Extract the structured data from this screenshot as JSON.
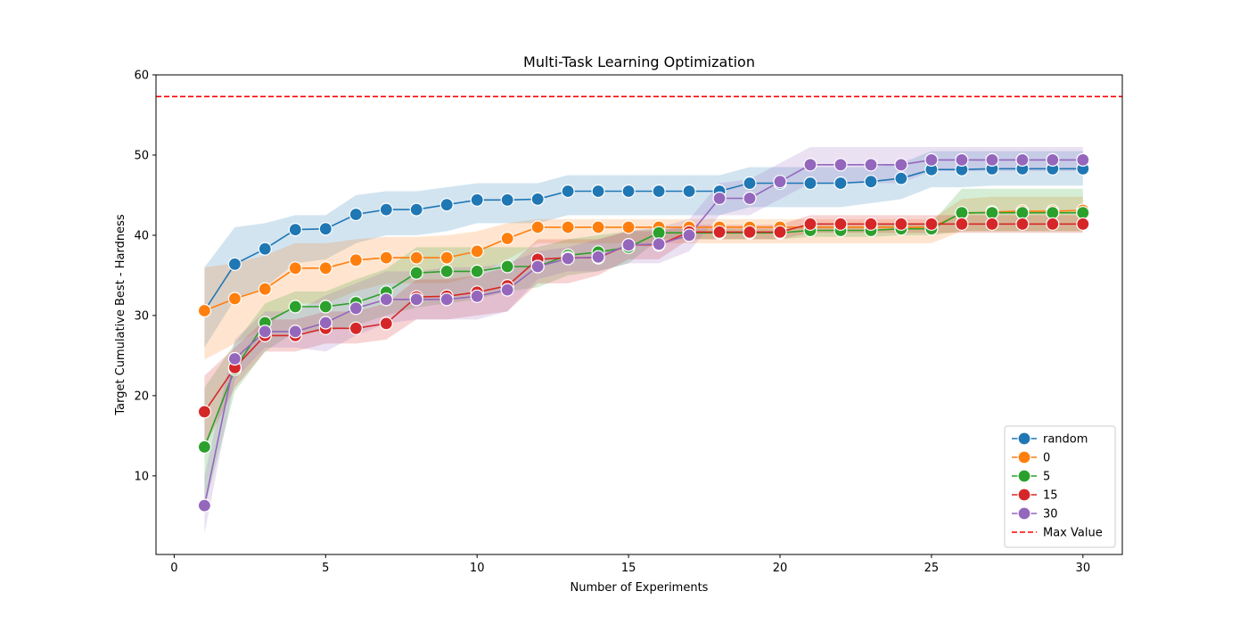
{
  "chart_data": {
    "type": "line",
    "title": "Multi-Task Learning Optimization",
    "xlabel": "Number of Experiments",
    "ylabel": "Target Cumulative Best - Hardness",
    "xlim": [
      -0.6,
      31.3
    ],
    "ylim": [
      0.2,
      60
    ],
    "xticks": [
      0,
      5,
      10,
      15,
      20,
      25,
      30
    ],
    "yticks": [
      10,
      20,
      30,
      40,
      50,
      60
    ],
    "grid": false,
    "legend_position": "lower-right",
    "x": [
      1,
      2,
      3,
      4,
      5,
      6,
      7,
      8,
      9,
      10,
      11,
      12,
      13,
      14,
      15,
      16,
      17,
      18,
      19,
      20,
      21,
      22,
      23,
      24,
      25,
      26,
      27,
      28,
      29,
      30
    ],
    "series": [
      {
        "name": "random",
        "color": "#1f77b4",
        "values": [
          30.6,
          36.4,
          38.3,
          40.7,
          40.8,
          42.6,
          43.2,
          43.2,
          43.8,
          44.4,
          44.4,
          44.5,
          45.5,
          45.5,
          45.5,
          45.5,
          45.5,
          45.5,
          46.5,
          46.5,
          46.5,
          46.5,
          46.7,
          47.1,
          48.2,
          48.2,
          48.3,
          48.3,
          48.3,
          48.3
        ],
        "lower": [
          26,
          32,
          33.5,
          36.5,
          37,
          39,
          40,
          40,
          40.5,
          41.5,
          41.5,
          41.5,
          42.5,
          42.5,
          42.5,
          42.5,
          42.5,
          42.5,
          43.5,
          43.5,
          43.5,
          43.5,
          44,
          44.5,
          46,
          46,
          46.2,
          46.2,
          46.2,
          46.2
        ],
        "upper": [
          36,
          41,
          41.5,
          42.5,
          42.5,
          45,
          45.5,
          45.5,
          46,
          46.5,
          46.5,
          46.5,
          47.5,
          47.5,
          47.5,
          47.5,
          47.5,
          47.5,
          48.5,
          48.5,
          48.5,
          48.5,
          48.5,
          49,
          50.5,
          50.5,
          50.5,
          50.5,
          50.5,
          50.5
        ]
      },
      {
        "name": "0",
        "color": "#ff7f0e",
        "values": [
          30.6,
          32.1,
          33.3,
          35.9,
          35.9,
          36.9,
          37.2,
          37.2,
          37.2,
          38.0,
          39.6,
          41.0,
          41.0,
          41.0,
          41.0,
          41.0,
          41.0,
          41.0,
          41.0,
          41.0,
          41.0,
          41.0,
          41.0,
          41.0,
          41.0,
          42.7,
          42.9,
          43.0,
          43.0,
          43.1
        ],
        "lower": [
          24.5,
          26.5,
          28.5,
          31.5,
          31.5,
          33,
          34,
          34,
          34,
          35,
          37,
          39,
          39,
          39,
          39,
          39,
          39,
          39,
          39,
          39,
          39,
          39,
          39,
          39,
          39,
          40.5,
          40.5,
          40.5,
          40.5,
          40.5
        ],
        "upper": [
          36,
          36.5,
          37.5,
          39,
          39,
          39.5,
          39.8,
          39.8,
          40,
          40.5,
          41.5,
          42,
          42,
          42,
          42,
          42,
          42,
          42,
          42,
          42,
          42,
          42,
          42,
          42,
          42,
          44.5,
          44.8,
          44.8,
          44.8,
          44.8
        ]
      },
      {
        "name": "5",
        "color": "#2ca02c",
        "values": [
          13.6,
          23.3,
          29.1,
          31.1,
          31.1,
          31.6,
          32.9,
          35.3,
          35.5,
          35.5,
          36.1,
          36.1,
          37.5,
          37.9,
          38.5,
          40.3,
          40.3,
          40.3,
          40.3,
          40.3,
          40.6,
          40.6,
          40.6,
          40.8,
          40.8,
          42.8,
          42.8,
          42.8,
          42.8,
          42.8
        ],
        "lower": [
          6,
          20.5,
          25.5,
          28,
          28,
          28.8,
          30,
          31,
          31.5,
          32,
          33,
          33.5,
          35,
          35.5,
          36.5,
          39.5,
          39.5,
          39.5,
          39.5,
          39.5,
          39.8,
          39.8,
          39.8,
          40,
          40,
          40.5,
          40.5,
          40.5,
          40.5,
          40.5
        ],
        "upper": [
          21,
          26.5,
          31.5,
          33,
          33,
          34.5,
          35.8,
          38.5,
          38.5,
          38.5,
          38.5,
          38.5,
          39.5,
          40,
          40.5,
          40.8,
          40.8,
          40.8,
          40.8,
          40.8,
          41.2,
          41.2,
          41.2,
          41.5,
          41.5,
          45.8,
          45.8,
          45.8,
          45.8,
          45.8
        ]
      },
      {
        "name": "15",
        "color": "#d62728",
        "values": [
          18.0,
          23.5,
          27.5,
          27.5,
          28.4,
          28.4,
          29.0,
          32.3,
          32.4,
          32.9,
          33.7,
          37.0,
          37.2,
          37.2,
          38.8,
          38.8,
          40.4,
          40.4,
          40.4,
          40.4,
          41.4,
          41.4,
          41.4,
          41.4,
          41.4,
          41.4,
          41.4,
          41.4,
          41.4,
          41.4
        ],
        "lower": [
          13.5,
          21,
          25.5,
          25.5,
          26.5,
          26.5,
          27,
          29.5,
          29.5,
          30,
          30.5,
          34,
          34,
          35,
          37,
          37,
          39.5,
          39.5,
          39.5,
          39.5,
          40.3,
          40.3,
          40.3,
          40.3,
          40.3,
          40.3,
          40.3,
          40.3,
          40.3,
          40.3
        ],
        "upper": [
          22.5,
          26,
          29.5,
          29.5,
          30.5,
          30.5,
          31.5,
          34.5,
          34.5,
          35,
          36,
          39.5,
          39.5,
          39.5,
          40.5,
          40.5,
          41.3,
          41.3,
          41.3,
          41.3,
          42.5,
          42.5,
          42.5,
          42.5,
          42.5,
          42.5,
          42.5,
          42.5,
          42.5,
          42.5
        ]
      },
      {
        "name": "30",
        "color": "#9467bd",
        "values": [
          6.3,
          24.6,
          28.0,
          28.0,
          29.1,
          30.9,
          32.0,
          32.0,
          32.0,
          32.4,
          33.2,
          36.1,
          37.1,
          37.3,
          38.8,
          38.9,
          40.0,
          44.6,
          44.6,
          46.7,
          48.8,
          48.8,
          48.8,
          48.8,
          49.4,
          49.4,
          49.4,
          49.4,
          49.4,
          49.4
        ],
        "lower": [
          2.8,
          22,
          26,
          26,
          25.5,
          27.5,
          29,
          29.5,
          29.5,
          29.5,
          30.5,
          34.5,
          35.5,
          35.5,
          36.5,
          36.5,
          38,
          42.5,
          42.5,
          44.5,
          46.5,
          46.5,
          46.5,
          46.5,
          48,
          48,
          48,
          48,
          48,
          48
        ],
        "upper": [
          10,
          27,
          30.5,
          30.5,
          32.5,
          34,
          35.5,
          35.5,
          36,
          36,
          36.5,
          38,
          38.5,
          39.5,
          40.5,
          41,
          42,
          46.5,
          47,
          49,
          51,
          51,
          51,
          51,
          51,
          51,
          51,
          51,
          51,
          51
        ]
      }
    ],
    "reference_lines": [
      {
        "name": "Max Value",
        "y": 57.3,
        "color": "#ff0000",
        "style": "dashed"
      }
    ]
  }
}
